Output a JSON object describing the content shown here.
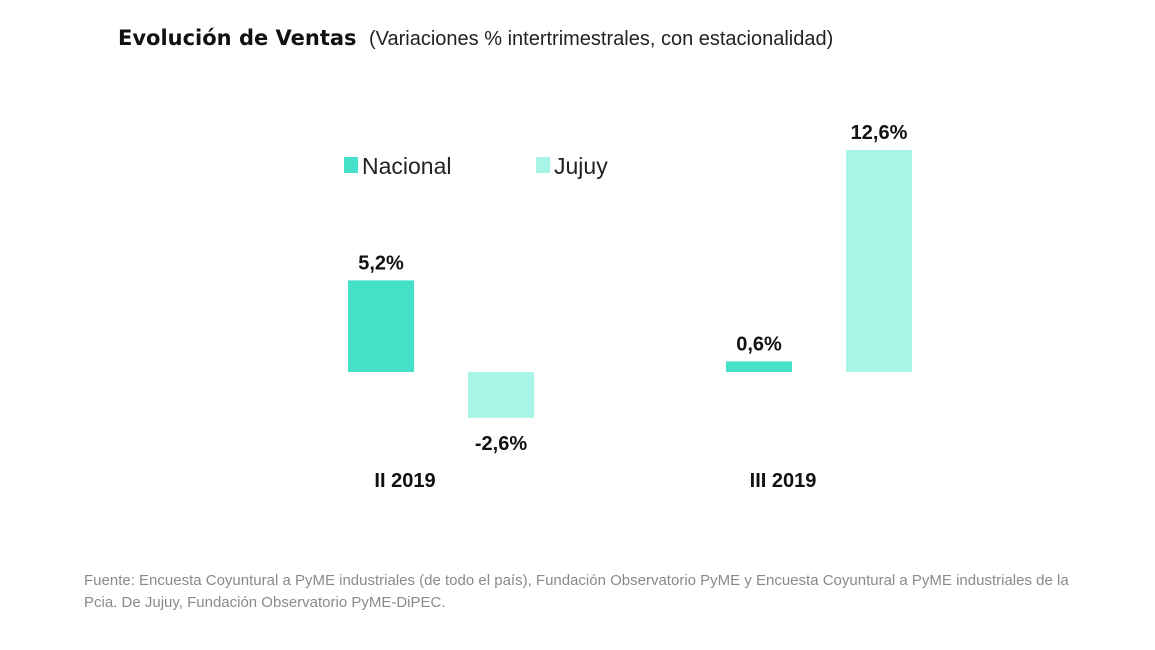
{
  "chart_data": {
    "type": "bar",
    "title": "Evolución de Ventas",
    "subtitle": "(Variaciones % intertrimestrales, con estacionalidad)",
    "categories": [
      "II 2019",
      "III 2019"
    ],
    "series": [
      {
        "name": "Nacional",
        "color": "#45e0c8",
        "values": [
          5.2,
          0.6
        ],
        "labels": [
          "5,2%",
          "0,6%"
        ]
      },
      {
        "name": "Jujuy",
        "color": "#a8f4e6",
        "values": [
          -2.6,
          12.6
        ],
        "labels": [
          "-2,6%",
          "12,6%"
        ]
      }
    ],
    "legend_position": "top",
    "grid": false,
    "ylim": [
      -2.6,
      12.6
    ]
  },
  "footer": {
    "source_line1": "Fuente: Encuesta Coyuntural a PyME industriales (de todo el país), Fundación Observatorio PyME y Encuesta Coyuntural a PyME industriales de la",
    "source_line2": "Pcia. De Jujuy, Fundación Observatorio PyME-DiPEC."
  }
}
